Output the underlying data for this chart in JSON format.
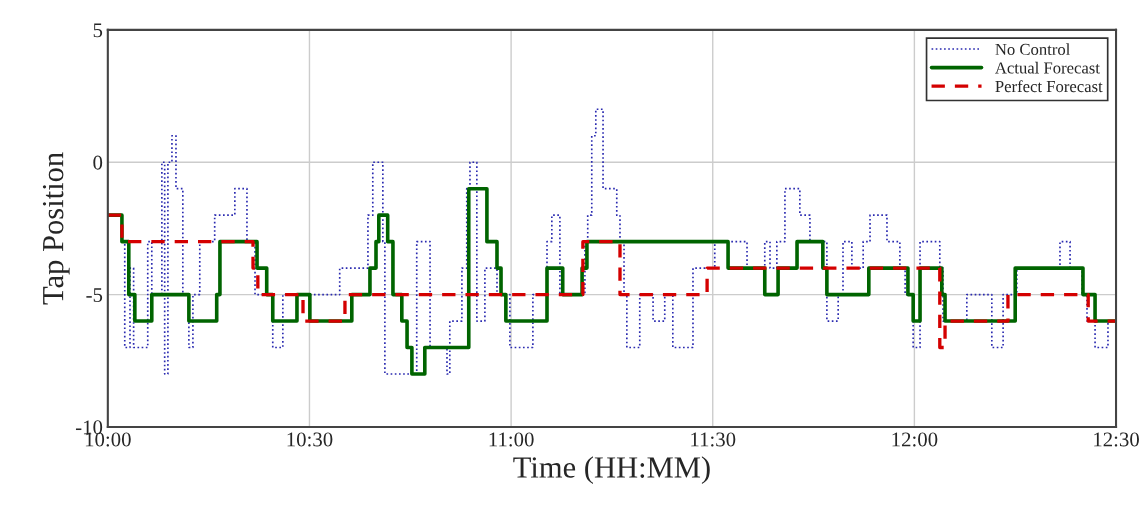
{
  "chart_data": {
    "type": "step",
    "xlabel": "Time (HH:MM)",
    "ylabel": "Tap Position",
    "xlim": [
      10,
      12.5
    ],
    "ylim": [
      -10,
      5
    ],
    "xticks": [
      {
        "value": 10,
        "label": "10:00"
      },
      {
        "value": 10.5,
        "label": "10:30"
      },
      {
        "value": 11,
        "label": "11:00"
      },
      {
        "value": 11.5,
        "label": "11:30"
      },
      {
        "value": 12,
        "label": "12:00"
      },
      {
        "value": 12.5,
        "label": "12:30"
      }
    ],
    "yticks": [
      -10,
      -5,
      0,
      5
    ],
    "grid": true,
    "legend": "top right",
    "series": [
      {
        "name": "No Control",
        "color": "#2a2ab0",
        "line_style": "dotted",
        "x": [
          10.0,
          10.035,
          10.042,
          10.055,
          10.064,
          10.099,
          10.109,
          10.134,
          10.141,
          10.149,
          10.159,
          10.169,
          10.186,
          10.201,
          10.211,
          10.228,
          10.265,
          10.315,
          10.345,
          10.365,
          10.409,
          10.434,
          10.575,
          10.645,
          10.657,
          10.682,
          10.687,
          10.766,
          10.799,
          10.841,
          10.848,
          10.878,
          10.89,
          10.898,
          10.915,
          10.935,
          10.965,
          10.997,
          11.054,
          11.089,
          11.101,
          11.121,
          11.183,
          11.19,
          11.2,
          11.21,
          11.228,
          11.262,
          11.27,
          11.28,
          11.287,
          11.319,
          11.352,
          11.381,
          11.401,
          11.451,
          11.505,
          11.585,
          11.629,
          11.642,
          11.659,
          11.679,
          11.716,
          11.741,
          11.783,
          11.811,
          11.823,
          11.845,
          11.873,
          11.89,
          11.932,
          11.964,
          11.977,
          11.997,
          12.014,
          12.063,
          12.071,
          12.13,
          12.192,
          12.22,
          12.254,
          12.361,
          12.386,
          12.416,
          12.428,
          12.448,
          12.48,
          12.5
        ],
        "values": [
          -2,
          -3,
          -7,
          -4,
          -7,
          -3,
          -5,
          0,
          -8,
          0,
          1,
          -1,
          -5,
          -7,
          -5,
          -3,
          -2,
          -1,
          -3,
          -5,
          -7,
          -5,
          -4,
          -2,
          0,
          -3,
          -8,
          -3,
          -7,
          -8,
          -6,
          -4,
          -1,
          0,
          -6,
          -4,
          -5,
          -7,
          -5,
          -3,
          -2,
          -5,
          -3,
          -2,
          1,
          2,
          -1,
          -2,
          -3,
          -5,
          -7,
          -5,
          -6,
          -5,
          -7,
          -4,
          -3,
          -4,
          -3,
          -4,
          -3,
          -1,
          -2,
          -3,
          -6,
          -5,
          -3,
          -4,
          -3,
          -2,
          -3,
          -4,
          -5,
          -7,
          -3,
          -4,
          -6,
          -5,
          -7,
          -5,
          -4,
          -3,
          -4,
          -5,
          -6,
          -7,
          -6,
          -6
        ]
      },
      {
        "name": "Actual Forecast",
        "color": "#006400",
        "line_style": "solid",
        "x": [
          10.0,
          10.035,
          10.052,
          10.067,
          10.109,
          10.201,
          10.27,
          10.278,
          10.37,
          10.394,
          10.409,
          10.469,
          10.501,
          10.605,
          10.65,
          10.665,
          10.672,
          10.694,
          10.707,
          10.729,
          10.742,
          10.754,
          10.786,
          10.895,
          10.94,
          10.965,
          10.975,
          10.987,
          11.089,
          11.128,
          11.176,
          11.188,
          11.538,
          11.629,
          11.662,
          11.709,
          11.773,
          11.783,
          11.887,
          11.984,
          11.997,
          12.014,
          12.068,
          12.076,
          12.25,
          12.418,
          12.448,
          12.5
        ],
        "values": [
          -2,
          -3,
          -5,
          -6,
          -5,
          -6,
          -5,
          -3,
          -4,
          -5,
          -6,
          -5,
          -6,
          -5,
          -4,
          -3,
          -2,
          -3,
          -5,
          -6,
          -7,
          -8,
          -7,
          -1,
          -3,
          -4,
          -5,
          -6,
          -4,
          -5,
          -4,
          -3,
          -4,
          -5,
          -4,
          -3,
          -4,
          -5,
          -4,
          -5,
          -6,
          -4,
          -5,
          -6,
          -4,
          -5,
          -6,
          -6
        ]
      },
      {
        "name": "Perfect Forecast",
        "color": "#d40000",
        "line_style": "dashed",
        "x": [
          10.0,
          10.035,
          10.36,
          10.372,
          10.484,
          10.588,
          11.178,
          11.27,
          11.486,
          12.063,
          12.076,
          12.232,
          12.431,
          12.5
        ],
        "values": [
          -2,
          -3,
          -4,
          -5,
          -6,
          -5,
          -3,
          -5,
          -4,
          -7,
          -6,
          -5,
          -6,
          -6
        ]
      }
    ]
  }
}
